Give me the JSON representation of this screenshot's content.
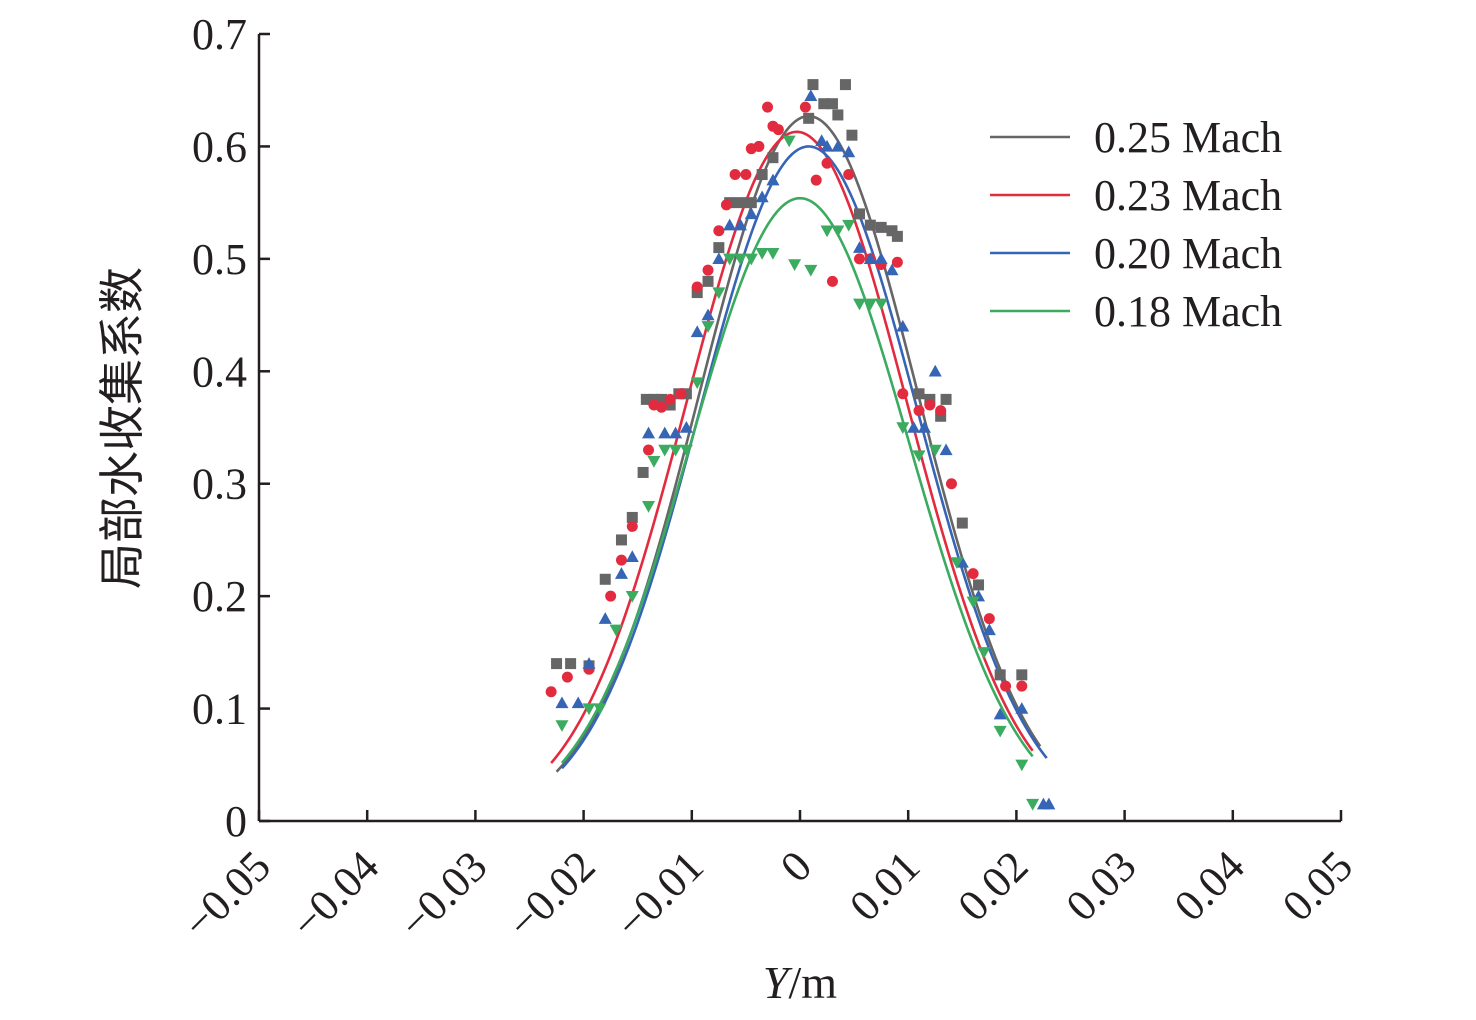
{
  "chart_data": {
    "type": "scatter",
    "title": "",
    "xlabel_italic": "Y",
    "xlabel_unit": "/m",
    "ylabel": "局部水收集系数",
    "xlim": [
      -0.05,
      0.05
    ],
    "ylim": [
      0,
      0.7
    ],
    "x_ticks": [
      "−0.05",
      "−0.04",
      "−0.03",
      "−0.02",
      "−0.01",
      "0",
      "0.01",
      "0.02",
      "0.03",
      "0.04",
      "0.05"
    ],
    "y_ticks": [
      "0",
      "0.1",
      "0.2",
      "0.3",
      "0.4",
      "0.5",
      "0.6",
      "0.7"
    ],
    "grid": false,
    "legend_position": "top-right",
    "series": [
      {
        "name": "0.25 Mach",
        "color": "#666666",
        "marker": "square",
        "fit": {
          "peak": 0.627,
          "center": 0.0008,
          "sigma": 0.0101,
          "range": [
            -0.0225,
            0.0222
          ]
        },
        "points": [
          [
            -0.0225,
            0.14
          ],
          [
            -0.0212,
            0.14
          ],
          [
            -0.0195,
            0.138
          ],
          [
            -0.018,
            0.215
          ],
          [
            -0.0165,
            0.25
          ],
          [
            -0.0155,
            0.27
          ],
          [
            -0.0145,
            0.31
          ],
          [
            -0.0142,
            0.375
          ],
          [
            -0.0135,
            0.375
          ],
          [
            -0.0128,
            0.375
          ],
          [
            -0.012,
            0.37
          ],
          [
            -0.0112,
            0.38
          ],
          [
            -0.0105,
            0.38
          ],
          [
            -0.0095,
            0.47
          ],
          [
            -0.0085,
            0.48
          ],
          [
            -0.0075,
            0.51
          ],
          [
            -0.0065,
            0.55
          ],
          [
            -0.0055,
            0.55
          ],
          [
            -0.0045,
            0.55
          ],
          [
            -0.0035,
            0.575
          ],
          [
            -0.0025,
            0.59
          ],
          [
            0.0008,
            0.625
          ],
          [
            0.0012,
            0.655
          ],
          [
            0.0022,
            0.638
          ],
          [
            0.003,
            0.638
          ],
          [
            0.0035,
            0.628
          ],
          [
            0.0042,
            0.655
          ],
          [
            0.0048,
            0.61
          ],
          [
            0.0055,
            0.54
          ],
          [
            0.0065,
            0.53
          ],
          [
            0.0075,
            0.528
          ],
          [
            0.0085,
            0.525
          ],
          [
            0.009,
            0.52
          ],
          [
            0.011,
            0.38
          ],
          [
            0.012,
            0.375
          ],
          [
            0.013,
            0.36
          ],
          [
            0.0135,
            0.375
          ],
          [
            0.015,
            0.265
          ],
          [
            0.0165,
            0.21
          ],
          [
            0.0185,
            0.13
          ],
          [
            0.0205,
            0.13
          ]
        ]
      },
      {
        "name": "0.23 Mach",
        "color": "#e32b3f",
        "marker": "circle",
        "fit": {
          "peak": 0.613,
          "center": -0.0003,
          "sigma": 0.0102,
          "range": [
            -0.023,
            0.0215
          ]
        },
        "points": [
          [
            -0.023,
            0.115
          ],
          [
            -0.0215,
            0.128
          ],
          [
            -0.0195,
            0.135
          ],
          [
            -0.0175,
            0.2
          ],
          [
            -0.0165,
            0.232
          ],
          [
            -0.0155,
            0.262
          ],
          [
            -0.014,
            0.33
          ],
          [
            -0.0135,
            0.37
          ],
          [
            -0.0128,
            0.368
          ],
          [
            -0.012,
            0.375
          ],
          [
            -0.011,
            0.38
          ],
          [
            -0.0095,
            0.475
          ],
          [
            -0.0085,
            0.49
          ],
          [
            -0.0075,
            0.525
          ],
          [
            -0.0068,
            0.548
          ],
          [
            -0.006,
            0.575
          ],
          [
            -0.005,
            0.575
          ],
          [
            -0.0045,
            0.598
          ],
          [
            -0.0038,
            0.6
          ],
          [
            -0.003,
            0.635
          ],
          [
            -0.0025,
            0.618
          ],
          [
            -0.002,
            0.615
          ],
          [
            0.0005,
            0.635
          ],
          [
            0.0015,
            0.57
          ],
          [
            0.0025,
            0.585
          ],
          [
            0.003,
            0.48
          ],
          [
            0.0045,
            0.575
          ],
          [
            0.0055,
            0.5
          ],
          [
            0.0065,
            0.5
          ],
          [
            0.0075,
            0.495
          ],
          [
            0.009,
            0.497
          ],
          [
            0.0095,
            0.38
          ],
          [
            0.011,
            0.365
          ],
          [
            0.012,
            0.37
          ],
          [
            0.013,
            0.365
          ],
          [
            0.014,
            0.3
          ],
          [
            0.016,
            0.22
          ],
          [
            0.0175,
            0.18
          ],
          [
            0.019,
            0.12
          ],
          [
            0.0205,
            0.12
          ]
        ]
      },
      {
        "name": "0.20 Mach",
        "color": "#3665b5",
        "marker": "triangle-up",
        "fit": {
          "peak": 0.6,
          "center": 0.0008,
          "sigma": 0.0101,
          "range": [
            -0.022,
            0.0228
          ]
        },
        "points": [
          [
            -0.022,
            0.105
          ],
          [
            -0.0205,
            0.105
          ],
          [
            -0.0195,
            0.14
          ],
          [
            -0.018,
            0.18
          ],
          [
            -0.0165,
            0.22
          ],
          [
            -0.0155,
            0.235
          ],
          [
            -0.014,
            0.345
          ],
          [
            -0.0125,
            0.345
          ],
          [
            -0.0115,
            0.345
          ],
          [
            -0.0105,
            0.35
          ],
          [
            -0.0095,
            0.435
          ],
          [
            -0.0085,
            0.45
          ],
          [
            -0.0075,
            0.5
          ],
          [
            -0.0065,
            0.53
          ],
          [
            -0.0055,
            0.53
          ],
          [
            -0.0045,
            0.54
          ],
          [
            -0.0035,
            0.555
          ],
          [
            -0.0025,
            0.57
          ],
          [
            0.001,
            0.645
          ],
          [
            0.002,
            0.605
          ],
          [
            0.0025,
            0.6
          ],
          [
            0.0035,
            0.6
          ],
          [
            0.0045,
            0.595
          ],
          [
            0.0055,
            0.51
          ],
          [
            0.0065,
            0.5
          ],
          [
            0.0075,
            0.5
          ],
          [
            0.0085,
            0.49
          ],
          [
            0.0095,
            0.44
          ],
          [
            0.0105,
            0.35
          ],
          [
            0.0115,
            0.35
          ],
          [
            0.0125,
            0.4
          ],
          [
            0.0135,
            0.33
          ],
          [
            0.015,
            0.23
          ],
          [
            0.0165,
            0.2
          ],
          [
            0.0175,
            0.17
          ],
          [
            0.0185,
            0.095
          ],
          [
            0.0205,
            0.1
          ],
          [
            0.0225,
            0.015
          ],
          [
            0.023,
            0.015
          ]
        ]
      },
      {
        "name": "0.18 Mach",
        "color": "#3aab5f",
        "marker": "triangle-down",
        "fit": {
          "peak": 0.554,
          "center": 0.0,
          "sigma": 0.0101,
          "range": [
            -0.022,
            0.0215
          ]
        },
        "points": [
          [
            -0.022,
            0.085
          ],
          [
            -0.0195,
            0.1
          ],
          [
            -0.0185,
            0.1
          ],
          [
            -0.017,
            0.17
          ],
          [
            -0.0155,
            0.2
          ],
          [
            -0.014,
            0.28
          ],
          [
            -0.0135,
            0.32
          ],
          [
            -0.0125,
            0.33
          ],
          [
            -0.0115,
            0.33
          ],
          [
            -0.0105,
            0.33
          ],
          [
            -0.0095,
            0.39
          ],
          [
            -0.0085,
            0.44
          ],
          [
            -0.0075,
            0.47
          ],
          [
            -0.0065,
            0.5
          ],
          [
            -0.0055,
            0.5
          ],
          [
            -0.0045,
            0.5
          ],
          [
            -0.0035,
            0.505
          ],
          [
            -0.0025,
            0.505
          ],
          [
            -0.001,
            0.605
          ],
          [
            -0.0005,
            0.495
          ],
          [
            0.001,
            0.49
          ],
          [
            0.0025,
            0.525
          ],
          [
            0.0035,
            0.525
          ],
          [
            0.0045,
            0.53
          ],
          [
            0.0055,
            0.46
          ],
          [
            0.0065,
            0.46
          ],
          [
            0.0075,
            0.46
          ],
          [
            0.0095,
            0.35
          ],
          [
            0.011,
            0.325
          ],
          [
            0.0125,
            0.33
          ],
          [
            0.0145,
            0.23
          ],
          [
            0.016,
            0.195
          ],
          [
            0.017,
            0.15
          ],
          [
            0.0185,
            0.08
          ],
          [
            0.0205,
            0.05
          ],
          [
            0.0215,
            0.015
          ]
        ]
      }
    ]
  }
}
